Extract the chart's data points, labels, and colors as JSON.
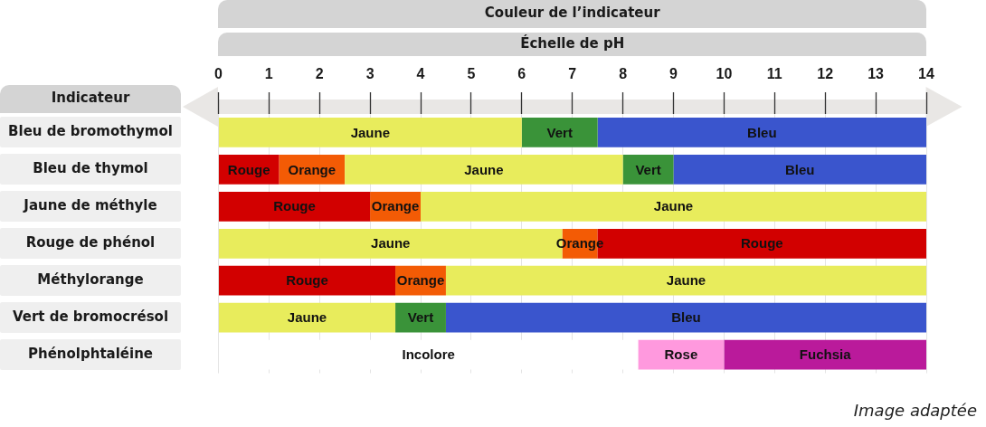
{
  "chart_data": {
    "type": "bar",
    "orientation": "horizontal",
    "xlabel": "Échelle de pH",
    "ylabel": "Indicateur",
    "title": "Couleur de l’indicateur",
    "annotations": [
      "Image adaptée"
    ],
    "categories": [
      "Bleu de bromothymol",
      "Bleu de thymol",
      "Jaune de méthyle",
      "Rouge de phénol",
      "Méthylorange",
      "Vert de bromocrésol",
      "Phénolphtaléine"
    ],
    "xlim": [
      0,
      14
    ],
    "xticks": [
      0,
      1,
      2,
      3,
      4,
      5,
      6,
      7,
      8,
      9,
      10,
      11,
      12,
      13,
      14
    ],
    "grid": "x",
    "series": [
      {
        "name": "Jaune",
        "color": "#e8ec5c",
        "base": [
          0,
          2.5,
          4,
          0,
          4.5,
          0,
          null
        ],
        "values": [
          6,
          5.5,
          10,
          6.8,
          9.5,
          3.5,
          null
        ]
      },
      {
        "name": "Vert",
        "color": "#3a9339",
        "base": [
          6,
          8,
          null,
          null,
          null,
          3.5,
          null
        ],
        "values": [
          1.5,
          1,
          null,
          null,
          null,
          1,
          null
        ]
      },
      {
        "name": "Bleu",
        "color": "#3a55cd",
        "base": [
          7.5,
          9,
          null,
          null,
          null,
          4.5,
          null
        ],
        "values": [
          6.5,
          5,
          null,
          null,
          null,
          9.5,
          null
        ]
      },
      {
        "name": "Rouge",
        "color": "#d20000",
        "base": [
          null,
          0,
          0,
          7.5,
          0,
          null,
          null
        ],
        "values": [
          null,
          1.2,
          3,
          6.5,
          3.5,
          null,
          null
        ]
      },
      {
        "name": "Orange",
        "color": "#f35b05",
        "base": [
          null,
          1.2,
          3,
          6.8,
          3.5,
          null,
          null
        ],
        "values": [
          null,
          1.3,
          1,
          0.7,
          1,
          null,
          null
        ]
      },
      {
        "name": "Incolore",
        "color": "#ffffff",
        "base": [
          null,
          null,
          null,
          null,
          null,
          null,
          0
        ],
        "values": [
          null,
          null,
          null,
          null,
          null,
          null,
          8.3
        ]
      },
      {
        "name": "Rose",
        "color": "#ff99de",
        "base": [
          null,
          null,
          null,
          null,
          null,
          null,
          8.3
        ],
        "values": [
          null,
          null,
          null,
          null,
          null,
          null,
          1.7
        ]
      },
      {
        "name": "Fuchsia",
        "color": "#ba1a9b",
        "base": [
          null,
          null,
          null,
          null,
          null,
          null,
          10
        ],
        "values": [
          null,
          null,
          null,
          null,
          null,
          null,
          4
        ]
      }
    ]
  }
}
